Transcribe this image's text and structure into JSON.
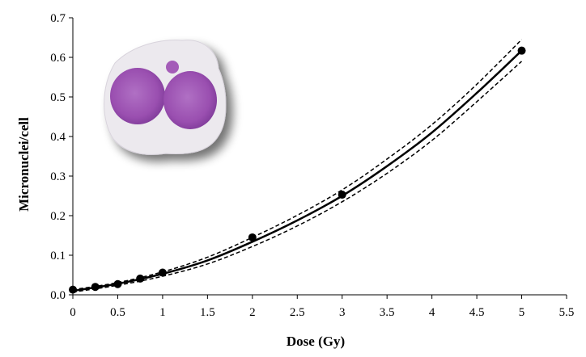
{
  "chart_data": {
    "type": "scatter",
    "title": "",
    "xlabel": "Dose (Gy)",
    "ylabel": "Micronuclei/cell",
    "xlim": [
      0,
      5.5
    ],
    "ylim": [
      0,
      0.7
    ],
    "x_ticks": [
      "0",
      "0.5",
      "1",
      "1.5",
      "2",
      "2.5",
      "3",
      "3.5",
      "4",
      "4.5",
      "5",
      "5.5"
    ],
    "y_ticks": [
      "0.0",
      "0.1",
      "0.2",
      "0.3",
      "0.4",
      "0.5",
      "0.6",
      "0.7"
    ],
    "grid": false,
    "legend": "none",
    "points": {
      "x": [
        0,
        0.25,
        0.5,
        0.75,
        1,
        2,
        3,
        5
      ],
      "y": [
        0.013,
        0.02,
        0.027,
        0.041,
        0.056,
        0.145,
        0.253,
        0.617
      ]
    },
    "fit_curve": {
      "style": "solid",
      "x": [
        0,
        0.5,
        1,
        1.5,
        2,
        2.5,
        3,
        3.5,
        4,
        4.5,
        5
      ],
      "y": [
        0.01,
        0.028,
        0.053,
        0.087,
        0.134,
        0.188,
        0.25,
        0.325,
        0.41,
        0.51,
        0.617
      ]
    },
    "confidence_upper": {
      "style": "dashed",
      "x": [
        0,
        0.5,
        1,
        1.5,
        2,
        2.5,
        3,
        3.5,
        4,
        4.5,
        5
      ],
      "y": [
        0.013,
        0.031,
        0.058,
        0.095,
        0.145,
        0.201,
        0.265,
        0.343,
        0.43,
        0.532,
        0.645
      ]
    },
    "confidence_lower": {
      "style": "dashed",
      "x": [
        0,
        0.5,
        1,
        1.5,
        2,
        2.5,
        3,
        3.5,
        4,
        4.5,
        5
      ],
      "y": [
        0.007,
        0.024,
        0.047,
        0.078,
        0.122,
        0.174,
        0.235,
        0.307,
        0.39,
        0.488,
        0.59
      ]
    },
    "colors": {
      "line": "#000000",
      "points": "#000000",
      "cell_cytoplasm": "#ece9ee",
      "cell_nuclei": "#9a4fb0"
    }
  }
}
